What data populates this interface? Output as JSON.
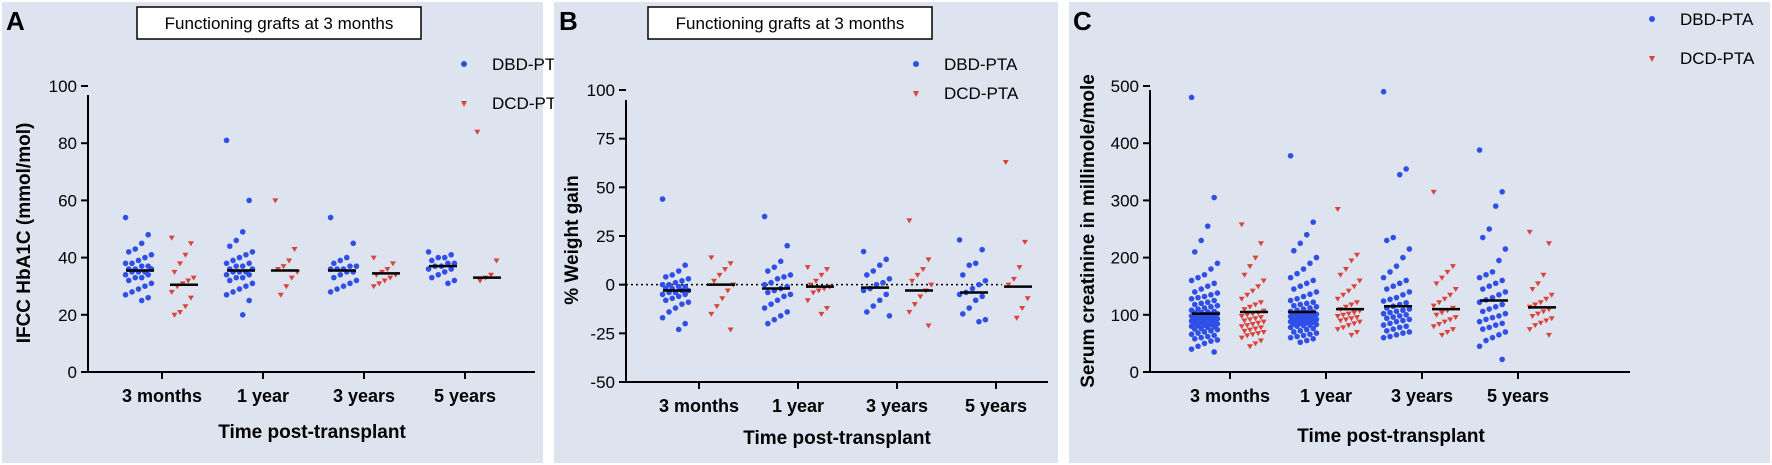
{
  "colors": {
    "dbd": "#2f4fe6",
    "dcd": "#d9453a",
    "panel_bg": "#dde4ef"
  },
  "chart_data": [
    {
      "type": "scatter",
      "panel_letter": "A",
      "title": "Functioning grafts at 3 months",
      "xlabel": "Time post-transplant",
      "ylabel": "IFCC HbA1C (mmol/mol)",
      "ylim": [
        0,
        100
      ],
      "yticks": [
        0,
        20,
        40,
        60,
        80,
        100
      ],
      "categories": [
        "3 months",
        "1 year",
        "3 years",
        "5 years"
      ],
      "legend": [
        "DBD-PTA",
        "DCD-PTA"
      ],
      "legend_position": "top-right",
      "zero_line": false,
      "series": [
        {
          "name": "DBD-PTA",
          "median": [
            35.5,
            35.5,
            35.5,
            37
          ],
          "values": [
            [
              54,
              48,
              45,
              43,
              42,
              41,
              40,
              39,
              38,
              38,
              37,
              37,
              36,
              36,
              36,
              35,
              35,
              35,
              34,
              34,
              33,
              33,
              32,
              31,
              30,
              29,
              28,
              27,
              26,
              25
            ],
            [
              81,
              60,
              49,
              46,
              44,
              42,
              41,
              40,
              39,
              38,
              38,
              37,
              37,
              36,
              36,
              35,
              35,
              35,
              34,
              34,
              33,
              33,
              32,
              31,
              30,
              29,
              28,
              27,
              25,
              20
            ],
            [
              54,
              45,
              40,
              39,
              38,
              37,
              37,
              36,
              36,
              36,
              35,
              35,
              34,
              33,
              32,
              31,
              30,
              29,
              28
            ],
            [
              42,
              41,
              40,
              40,
              39,
              38,
              38,
              37,
              37,
              36,
              36,
              35,
              34,
              33,
              32,
              31
            ]
          ]
        },
        {
          "name": "DCD-PTA",
          "median": [
            30.5,
            35.5,
            34.5,
            33
          ],
          "values": [
            [
              47,
              45,
              41,
              38,
              35,
              33,
              32,
              31,
              30,
              28,
              26,
              23,
              21,
              20
            ],
            [
              60,
              43,
              39,
              37,
              36,
              35,
              33,
              30,
              27
            ],
            [
              40,
              38,
              36,
              35,
              34,
              34,
              33,
              32,
              31,
              30
            ],
            [
              84,
              39,
              34,
              33,
              32
            ]
          ]
        }
      ]
    },
    {
      "type": "scatter",
      "panel_letter": "B",
      "title": "Functioning grafts at 3 months",
      "xlabel": "Time post-transplant",
      "ylabel": "% Weight gain",
      "ylim": [
        -50,
        100
      ],
      "yticks": [
        -50,
        -25,
        0,
        25,
        50,
        75,
        100
      ],
      "categories": [
        "3 months",
        "1 year",
        "3 years",
        "5 years"
      ],
      "legend": [
        "DBD-PTA",
        "DCD-PTA"
      ],
      "legend_position": "top-right",
      "zero_line": true,
      "series": [
        {
          "name": "DBD-PTA",
          "median": [
            -3,
            -2,
            -1.5,
            -4
          ],
          "values": [
            [
              44,
              10,
              7,
              5,
              4,
              3,
              2,
              1,
              0,
              0,
              -1,
              -1,
              -2,
              -2,
              -3,
              -3,
              -4,
              -4,
              -5,
              -5,
              -6,
              -7,
              -8,
              -9,
              -10,
              -12,
              -14,
              -17,
              -20,
              -23
            ],
            [
              35,
              20,
              12,
              9,
              7,
              5,
              4,
              3,
              1,
              0,
              -1,
              -2,
              -3,
              -4,
              -5,
              -6,
              -8,
              -10,
              -12,
              -14,
              -16,
              -18,
              -20
            ],
            [
              17,
              13,
              10,
              7,
              5,
              3,
              1,
              0,
              -2,
              -3,
              -5,
              -8,
              -11,
              -14,
              -16
            ],
            [
              23,
              18,
              11,
              10,
              5,
              2,
              0,
              -2,
              -4,
              -5,
              -6,
              -8,
              -12,
              -15,
              -18,
              -19
            ]
          ]
        },
        {
          "name": "DCD-PTA",
          "median": [
            0,
            -1,
            -3,
            -1
          ],
          "values": [
            [
              14,
              11,
              8,
              5,
              2,
              0,
              -3,
              -7,
              -11,
              -15,
              -23
            ],
            [
              9,
              8,
              5,
              2,
              0,
              -1,
              -2,
              -3,
              -4,
              -8,
              -12,
              -15
            ],
            [
              33,
              13,
              8,
              5,
              2,
              0,
              -3,
              -6,
              -10,
              -14,
              -21
            ],
            [
              63,
              22,
              9,
              3,
              0,
              -7,
              -12,
              -17
            ]
          ]
        }
      ]
    },
    {
      "type": "scatter",
      "panel_letter": "C",
      "title": "",
      "xlabel": "Time post-transplant",
      "ylabel": "Serum creatinine in millimole/mole",
      "ylim": [
        0,
        500
      ],
      "yticks": [
        0,
        100,
        200,
        300,
        400,
        500
      ],
      "categories": [
        "3 months",
        "1 year",
        "3 years",
        "5 years"
      ],
      "legend": [
        "DBD-PTA",
        "DCD-PTA"
      ],
      "legend_position": "top-right",
      "zero_line": false,
      "series": [
        {
          "name": "DBD-PTA",
          "median": [
            102,
            105,
            115,
            125
          ],
          "values": [
            [
              480,
              305,
              255,
              230,
              210,
              190,
              180,
              170,
              165,
              160,
              155,
              150,
              145,
              140,
              138,
              135,
              132,
              130,
              128,
              125,
              122,
              120,
              118,
              116,
              114,
              112,
              110,
              108,
              106,
              105,
              104,
              103,
              102,
              101,
              100,
              99,
              98,
              97,
              96,
              95,
              94,
              93,
              92,
              91,
              90,
              89,
              88,
              87,
              86,
              85,
              84,
              83,
              82,
              81,
              80,
              79,
              78,
              76,
              75,
              74,
              72,
              70,
              68,
              66,
              64,
              62,
              60,
              58,
              56,
              54,
              50,
              45,
              40,
              35
            ],
            [
              378,
              262,
              240,
              225,
              212,
              200,
              190,
              180,
              172,
              165,
              160,
              155,
              150,
              145,
              140,
              136,
              132,
              128,
              125,
              122,
              120,
              118,
              116,
              114,
              112,
              110,
              108,
              106,
              105,
              104,
              103,
              102,
              101,
              100,
              99,
              98,
              97,
              96,
              95,
              94,
              93,
              92,
              91,
              90,
              89,
              88,
              87,
              86,
              85,
              84,
              83,
              82,
              81,
              80,
              78,
              76,
              74,
              72,
              70,
              68,
              66,
              64,
              62,
              60,
              58,
              55,
              52
            ],
            [
              490,
              355,
              345,
              235,
              230,
              215,
              200,
              185,
              175,
              165,
              160,
              155,
              150,
              145,
              140,
              135,
              130,
              127,
              124,
              121,
              118,
              115,
              112,
              110,
              108,
              106,
              104,
              102,
              100,
              98,
              96,
              94,
              92,
              90,
              88,
              85,
              82,
              80,
              78,
              75,
              72,
              70,
              68,
              65,
              62,
              60
            ],
            [
              388,
              315,
              290,
              250,
              235,
              215,
              195,
              175,
              170,
              165,
              160,
              155,
              150,
              145,
              140,
              135,
              130,
              126,
              122,
              118,
              114,
              110,
              106,
              102,
              98,
              95,
              92,
              88,
              85,
              82,
              78,
              75,
              70,
              65,
              60,
              55,
              45,
              22
            ]
          ]
        },
        {
          "name": "DCD-PTA",
          "median": [
            105,
            110,
            110,
            113
          ],
          "values": [
            [
              258,
              225,
              200,
              185,
              170,
              160,
              150,
              142,
              135,
              128,
              122,
              118,
              114,
              110,
              107,
              104,
              102,
              100,
              98,
              96,
              94,
              92,
              90,
              88,
              86,
              84,
              82,
              80,
              78,
              76,
              74,
              72,
              70,
              68,
              66,
              64,
              60,
              55,
              50,
              45
            ],
            [
              285,
              205,
              195,
              180,
              170,
              160,
              150,
              142,
              135,
              128,
              122,
              118,
              114,
              110,
              107,
              104,
              102,
              100,
              98,
              96,
              94,
              92,
              90,
              88,
              85,
              82,
              78,
              75,
              70,
              65
            ],
            [
              315,
              185,
              175,
              165,
              155,
              145,
              135,
              128,
              122,
              116,
              112,
              108,
              104,
              100,
              96,
              92,
              88,
              84,
              80,
              75,
              70,
              65
            ],
            [
              245,
              225,
              170,
              155,
              145,
              135,
              128,
              122,
              118,
              114,
              110,
              106,
              102,
              98,
              94,
              90,
              86,
              82,
              75,
              65
            ]
          ]
        }
      ]
    }
  ]
}
